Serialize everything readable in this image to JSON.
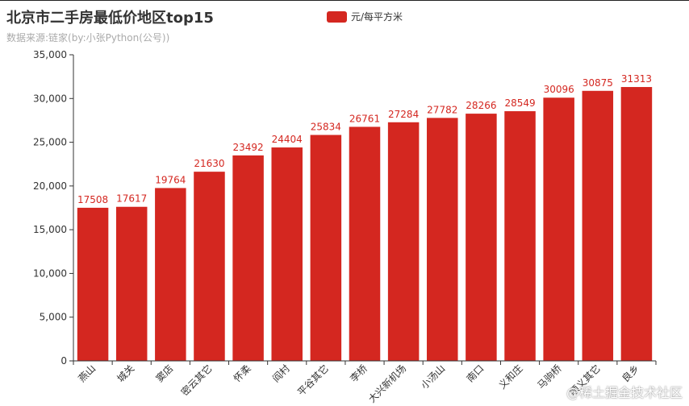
{
  "chart_data": {
    "type": "bar",
    "title": "北京市二手房最低价地区top15",
    "subtitle": "数据来源:链家(by:小张Python(公号))",
    "legend": {
      "position": "top-center",
      "entries": [
        "元/每平方米"
      ]
    },
    "color": "#d42720",
    "categories": [
      "燕山",
      "城关",
      "窦店",
      "密云其它",
      "怀柔",
      "阎村",
      "平谷其它",
      "李桥",
      "大兴新机场",
      "小汤山",
      "南口",
      "义和庄",
      "马驹桥",
      "顺义其它",
      "良乡"
    ],
    "series": [
      {
        "name": "元/每平方米",
        "values": [
          17508,
          17617,
          19764,
          21630,
          23492,
          24404,
          25834,
          26761,
          27284,
          27782,
          28266,
          28549,
          30096,
          30875,
          31313
        ]
      }
    ],
    "ylim": [
      0,
      35000
    ],
    "yticks": [
      0,
      5000,
      10000,
      15000,
      20000,
      25000,
      30000,
      35000
    ],
    "ytick_labels": [
      "0",
      "5,000",
      "10,000",
      "15,000",
      "20,000",
      "25,000",
      "30,000",
      "35,000"
    ],
    "grid": false,
    "x_label_rotation": "45-degree"
  },
  "watermark": "@稀土掘金技术社区"
}
